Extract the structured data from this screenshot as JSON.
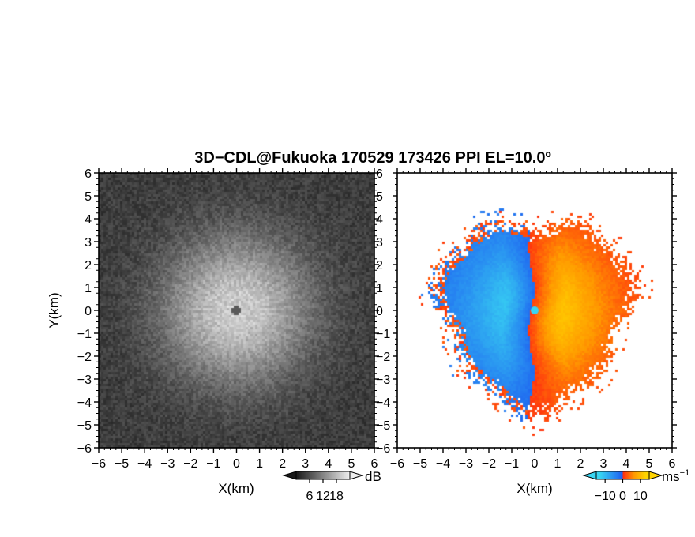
{
  "title": "3D−CDL@Fukuoka 170529 173426 PPI EL=10.0º",
  "chart_data": [
    {
      "type": "heatmap",
      "name": "reflectivity-panel",
      "xlabel": "X(km)",
      "ylabel": "Y(km)",
      "xlim": [
        -6,
        6
      ],
      "ylim": [
        -6,
        6
      ],
      "xticks": [
        "−6",
        "−5",
        "−4",
        "−3",
        "−2",
        "−1",
        "0",
        "1",
        "2",
        "3",
        "4",
        "5",
        "6"
      ],
      "yticks": [
        "−6",
        "−5",
        "−4",
        "−3",
        "−2",
        "−1",
        "0",
        "1",
        "2",
        "3",
        "4",
        "5",
        "6"
      ],
      "colormap": "grayscale",
      "colorbar": {
        "unit": "dB",
        "ticks": [
          "6",
          "12",
          "18"
        ],
        "tick_values": [
          6,
          12,
          18
        ],
        "range": [
          0,
          24
        ]
      },
      "pattern": {
        "bright_core_radius_km": 3.2,
        "peak_value_db": 20,
        "background_value_db": 4,
        "blanked_center_radius_km": 0.2
      }
    },
    {
      "type": "heatmap",
      "name": "doppler-velocity-panel",
      "xlabel": "X(km)",
      "ylabel": "",
      "xlim": [
        -6,
        6
      ],
      "ylim": [
        -6,
        6
      ],
      "xticks": [
        "−6",
        "−5",
        "−4",
        "−3",
        "−2",
        "−1",
        "0",
        "1",
        "2",
        "3",
        "4",
        "5",
        "6"
      ],
      "yticks": [
        "−6",
        "−5",
        "−4",
        "−3",
        "−2",
        "−1",
        "0",
        "1",
        "2",
        "3",
        "4",
        "5",
        "6"
      ],
      "colormap": "diverging-cyan-blue-red-orange-yellow",
      "colorbar": {
        "unit": "ms",
        "unit_exponent": "−1",
        "ticks": [
          "−10",
          "0",
          "10"
        ],
        "tick_values": [
          -10,
          0,
          10
        ],
        "range": [
          -15,
          15
        ]
      },
      "pattern": {
        "data_radius_km": 4.3,
        "approaching_side": "west",
        "receding_side": "east",
        "max_speed_ms": 13
      }
    }
  ],
  "colors": {
    "cyan": "#39d6f2",
    "blue": "#1d5cf0",
    "red": "#ff2a10",
    "orange": "#ff9a00",
    "yellow": "#ffd400",
    "background": "#ffffff",
    "axis": "#000000"
  }
}
